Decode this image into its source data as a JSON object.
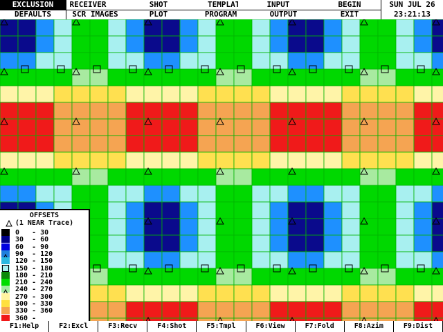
{
  "menu": {
    "row1": [
      "EXCLUSION",
      "RECEIVER",
      "SHOT",
      "TEMPLATE",
      "INPUT",
      "BEGIN"
    ],
    "row2": [
      "DEFAULTS",
      "SCR IMAGES",
      "PLOT",
      "PROGRAM",
      "OUTPUT",
      "EXIT"
    ],
    "selected": "EXCLUSION"
  },
  "clock": {
    "date": "SUN JUL 26",
    "time": "23:21:13"
  },
  "legend": {
    "title": "OFFSETS",
    "subtitle": "(1 NEAR Trace)",
    "bins": [
      {
        "range": "0   - 30",
        "color": "#000000",
        "icon": ""
      },
      {
        "range": "30  - 60",
        "color": "#00008b",
        "icon": ""
      },
      {
        "range": "60  - 90",
        "color": "#0000e0",
        "icon": ""
      },
      {
        "range": "90  - 120",
        "color": "#1e7fdc",
        "icon": "triangle-icon"
      },
      {
        "range": "120 - 150",
        "color": "#2ab8e0",
        "icon": ""
      },
      {
        "range": "150 - 180",
        "color": "#a8f0f0",
        "icon": "square-icon"
      },
      {
        "range": "180 - 210",
        "color": "#0a8a0a",
        "icon": ""
      },
      {
        "range": "210 - 240",
        "color": "#00dc00",
        "icon": ""
      },
      {
        "range": "240 - 270",
        "color": "#a0eaa0",
        "icon": "triangle-icon"
      },
      {
        "range": "270 - 300",
        "color": "#fff4a0",
        "icon": ""
      },
      {
        "range": "300 - 330",
        "color": "#ffe040",
        "icon": ""
      },
      {
        "range": "330 - 360",
        "color": "#f5a450",
        "icon": ""
      },
      {
        "range": "360 -",
        "color": "#f01818",
        "icon": ""
      }
    ]
  },
  "map_colors": {
    "navy": "#0a0a8c",
    "blue": "#1e90ff",
    "cyan": "#a8f0f0",
    "green": "#00d800",
    "lightgreen": "#a8eaa0",
    "paleyellow": "#fff4a8",
    "yellow": "#ffe050",
    "orange": "#f5a452",
    "red": "#f01a1a",
    "grid": "#00b400"
  },
  "fkeys": [
    "F1:Help",
    "F2:Excl",
    "F3:Recv",
    "F4:Shot",
    "F5:Tmpl",
    "F6:View",
    "F7:Fold",
    "F8:Azim",
    "F9:Dist"
  ]
}
